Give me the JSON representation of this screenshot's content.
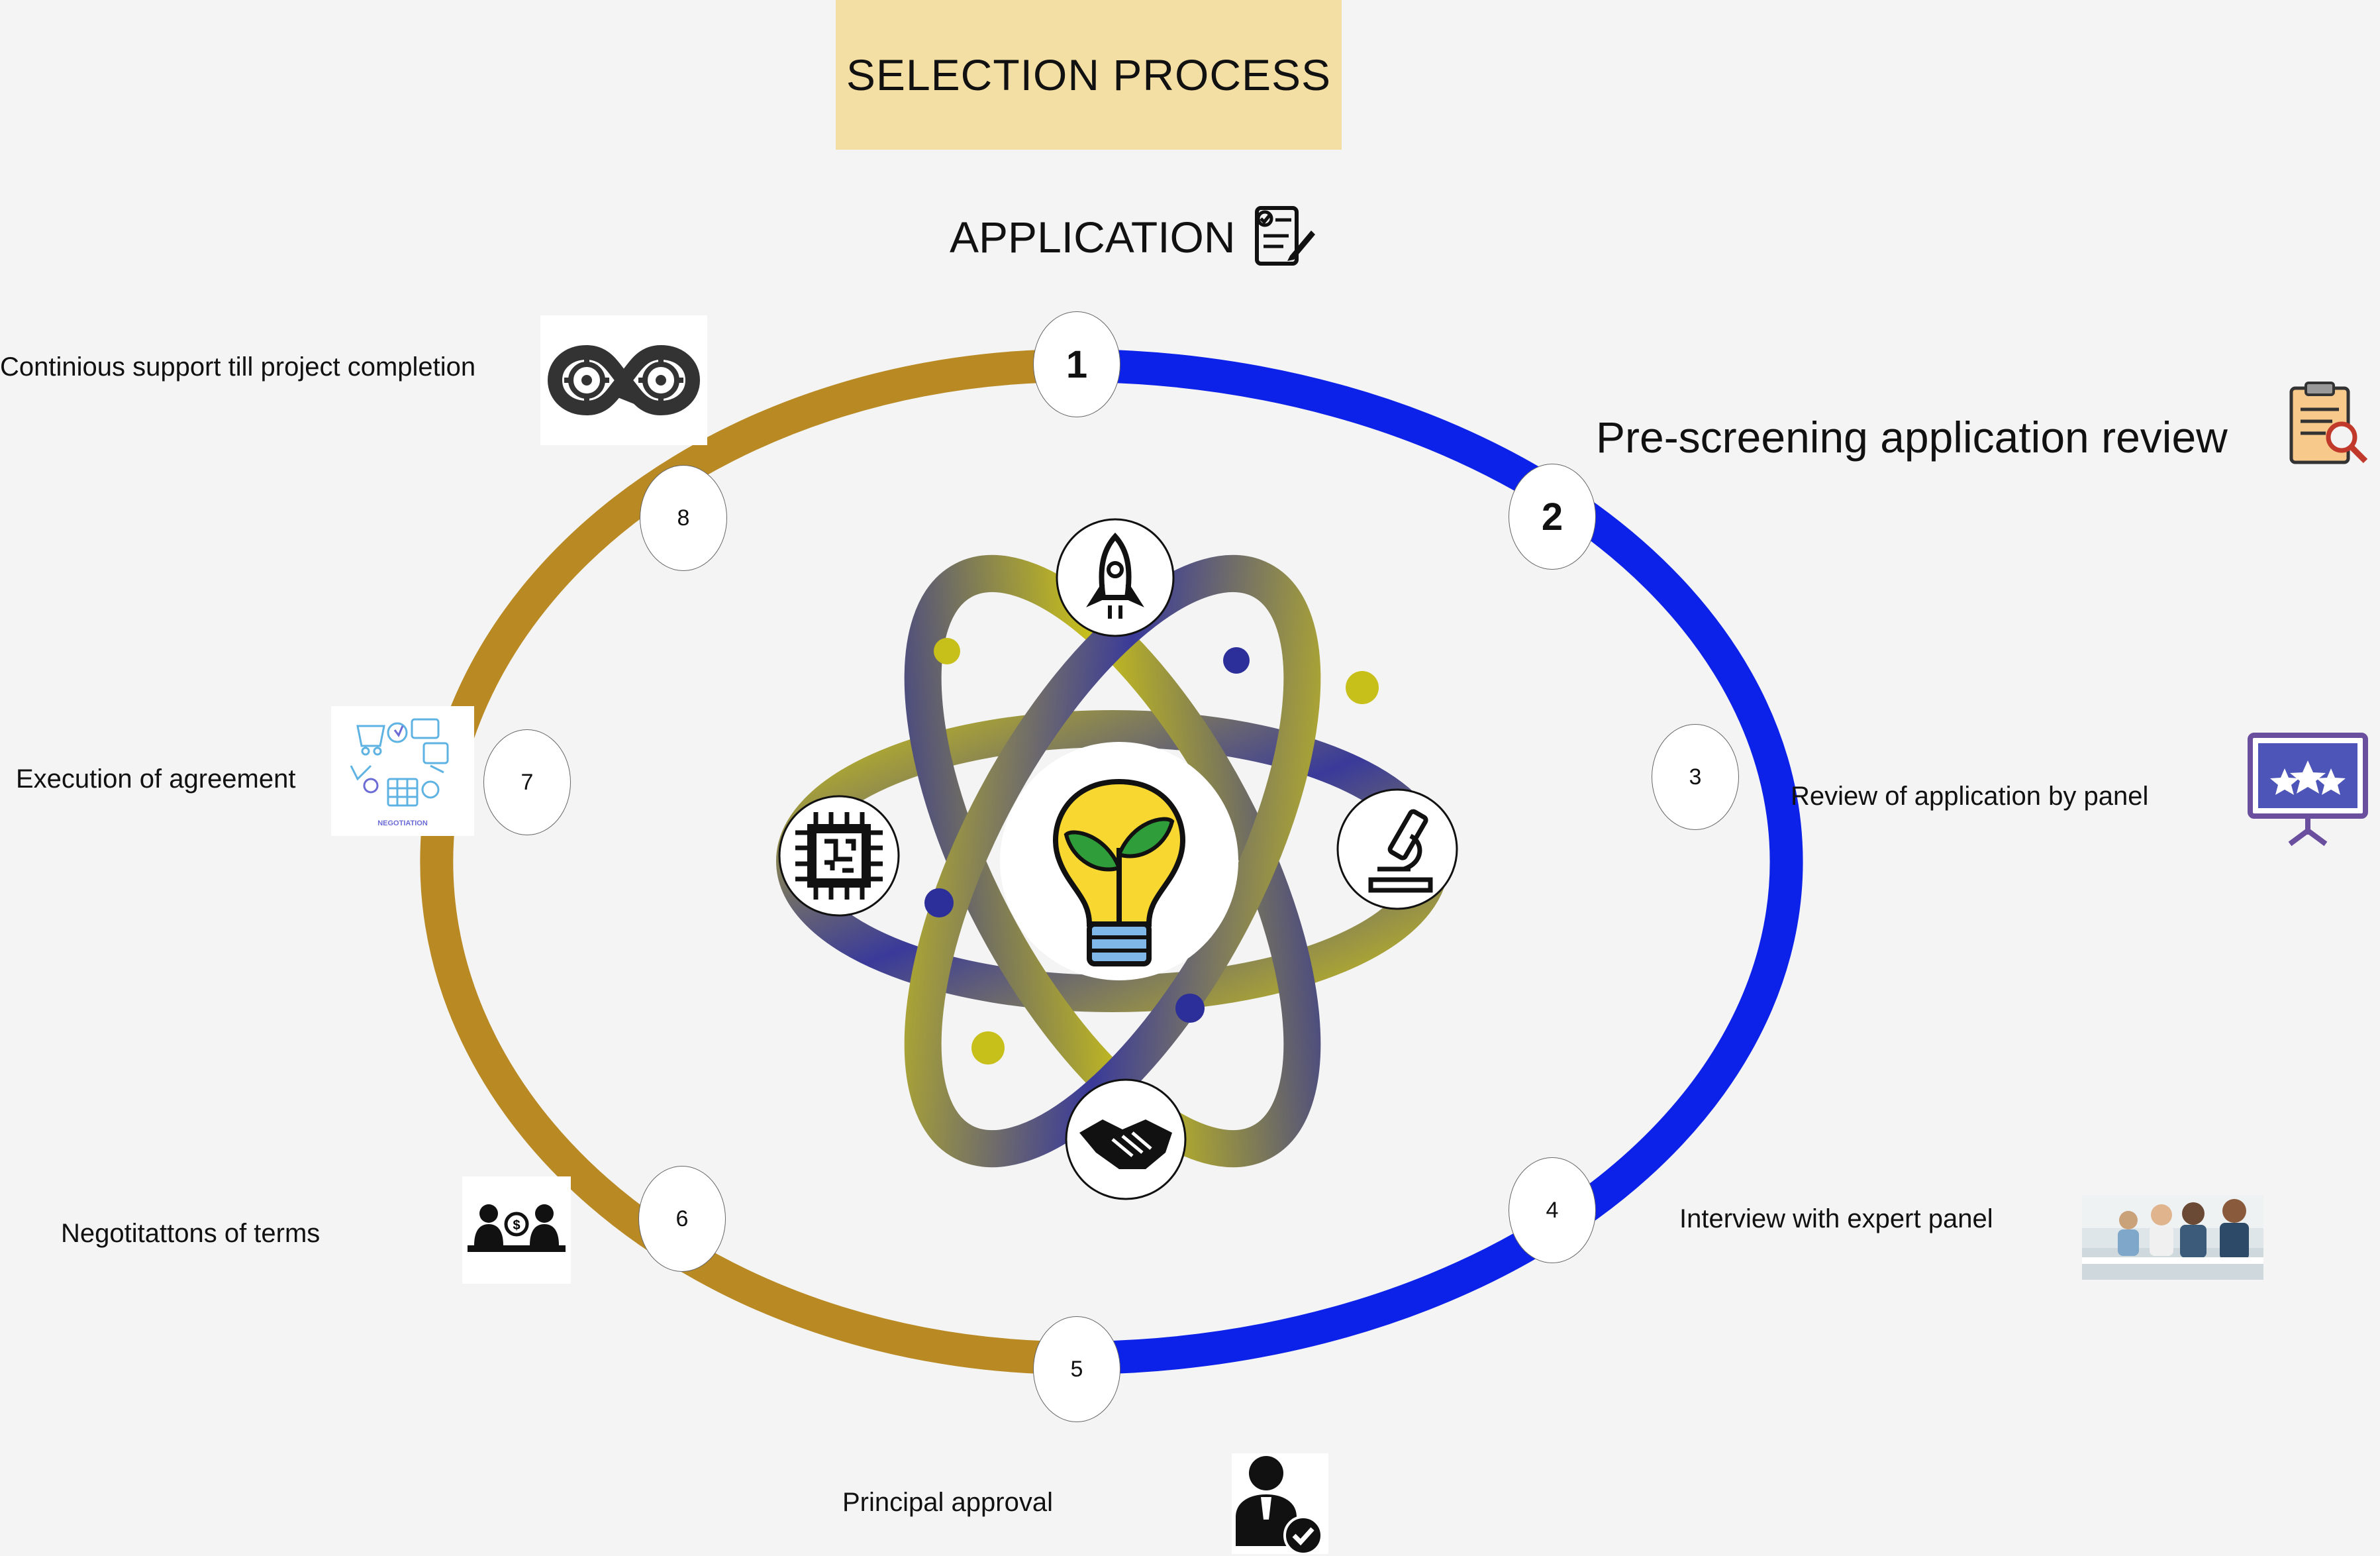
{
  "title": "SELECTION PROCESS",
  "steps": [
    {
      "number": "1",
      "label": "APPLICATION",
      "icon": "checklist-icon"
    },
    {
      "number": "2",
      "label": "Pre-screening application review",
      "icon": "clipboard-magnifier-icon"
    },
    {
      "number": "3",
      "label": "Review of application by panel",
      "icon": "presentation-stars-icon"
    },
    {
      "number": "4",
      "label": "Interview with expert panel",
      "icon": "team-meeting-photo"
    },
    {
      "number": "5",
      "label": "Principal approval",
      "icon": "person-checkmark-icon"
    },
    {
      "number": "6",
      "label": "Negotitattons  of terms",
      "icon": "negotiation-table-icon"
    },
    {
      "number": "7",
      "label": "Execution of agreement",
      "icon": "negotiation-illustration"
    },
    {
      "number": "8",
      "label": "Continious support till project completion",
      "icon": "infinity-gears-icon"
    }
  ],
  "illustration_caption": "NEGOTIATION",
  "colors": {
    "title_bg": "#f3dea4",
    "ring_left": "#b98a24",
    "ring_right": "#0d22e8",
    "atom_yellow": "#c8c01a",
    "atom_blue": "#2c2e9a"
  },
  "center_icons": [
    "lightbulb-plant-icon",
    "rocket-icon",
    "microscope-icon",
    "handshake-icon",
    "chip-icon"
  ]
}
